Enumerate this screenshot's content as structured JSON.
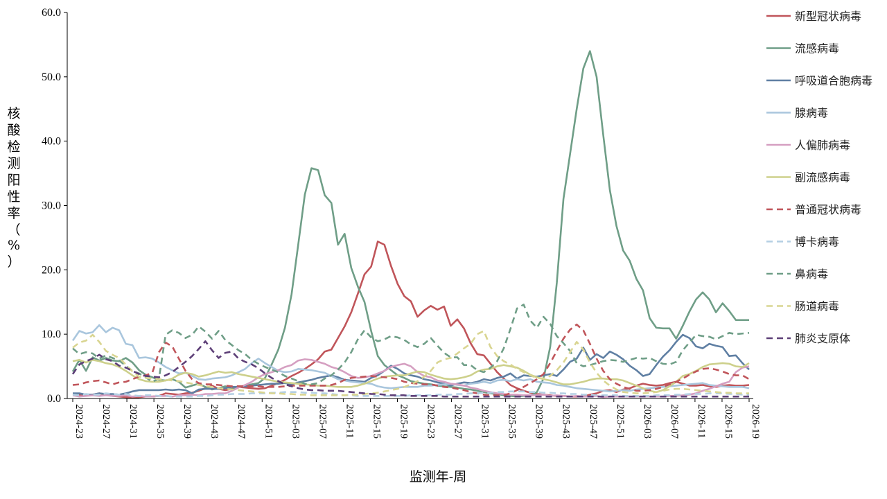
{
  "chart_data": {
    "type": "line",
    "title": "",
    "xlabel": "监测年-周",
    "ylabel": "核酸检测阳性率（%）",
    "ylim": [
      0,
      60
    ],
    "yticks": [
      "0.0",
      "10.0",
      "20.0",
      "30.0",
      "40.0",
      "50.0",
      "60.0"
    ],
    "xtick_labels": [
      "2024-23",
      "2024-27",
      "2024-31",
      "2024-35",
      "2024-39",
      "2024-43",
      "2024-47",
      "2024-51",
      "2025-03",
      "2025-07",
      "2025-11",
      "2025-15",
      "2025-19",
      "2025-23",
      "2025-27",
      "2025-31",
      "2025-35",
      "2025-39",
      "2025-43",
      "2025-47",
      "2025-51",
      "2026-03",
      "2026-07",
      "2026-11",
      "2026-15",
      "2026-19"
    ],
    "legend_position": "right",
    "grid": false,
    "series": [
      {
        "name": "新型冠状病毒",
        "color": "#c0555a",
        "dash": "solid",
        "values": [
          0.7,
          0.6,
          0.5,
          0.6,
          0.8,
          0.6,
          0.4,
          0.3,
          0.2,
          0.2,
          0.2,
          0.3,
          0.3,
          0.4,
          0.8,
          0.7,
          0.6,
          0.8,
          0.9,
          1.2,
          1.6,
          2.0,
          1.5,
          1.3,
          1.5,
          1.8,
          1.7,
          1.6,
          1.5,
          1.6,
          2.0,
          2.4,
          2.9,
          3.5,
          4.0,
          4.6,
          5.3,
          6.1,
          7.3,
          7.6,
          9.4,
          11.2,
          13.4,
          16.3,
          19.3,
          20.5,
          24.4,
          23.9,
          20.6,
          17.8,
          15.9,
          15.1,
          12.7,
          13.7,
          14.4,
          13.8,
          14.3,
          11.3,
          12.3,
          10.9,
          8.6,
          6.9,
          6.7,
          5.4,
          4.1,
          3.1,
          2.1,
          1.6,
          1.2,
          0.9,
          0.7,
          0.6,
          0.5,
          0.4,
          0.4,
          0.3,
          0.3,
          0.3,
          0.6,
          0.8,
          1.2,
          1.3,
          1.0,
          1.4,
          1.6,
          2.0,
          2.3,
          2.1,
          2.0,
          2.1,
          2.4,
          2.6,
          2.3,
          2.0,
          2.0,
          2.1,
          1.9,
          1.8,
          2.0,
          2.1,
          2.0,
          2.0,
          2.1
        ]
      },
      {
        "name": "流感病毒",
        "color": "#6f9e87",
        "dash": "solid",
        "values": [
          4.2,
          6.0,
          4.3,
          6.4,
          5.9,
          6.3,
          5.9,
          5.8,
          6.3,
          5.6,
          4.4,
          3.7,
          3.3,
          2.9,
          2.8,
          3.0,
          2.6,
          1.7,
          2.0,
          2.3,
          1.8,
          1.4,
          1.6,
          1.9,
          1.4,
          1.8,
          2.0,
          2.2,
          2.4,
          3.2,
          5.3,
          7.6,
          11.0,
          16.2,
          23.9,
          31.7,
          35.8,
          35.5,
          31.6,
          30.4,
          23.9,
          25.6,
          20.3,
          17.4,
          15.0,
          10.5,
          6.6,
          5.2,
          4.4,
          3.6,
          3.2,
          2.7,
          2.5,
          2.3,
          2.2,
          2.0,
          1.9,
          1.8,
          1.7,
          1.5,
          1.4,
          1.2,
          1.0,
          0.8,
          0.7,
          0.5,
          0.4,
          0.3,
          0.4,
          0.4,
          1.0,
          3.1,
          8.0,
          18.0,
          31.0,
          38.0,
          45.0,
          51.3,
          54.0,
          50.0,
          41.0,
          32.4,
          26.8,
          23.0,
          21.4,
          18.6,
          16.8,
          12.5,
          11.0,
          10.9,
          10.9,
          9.3,
          11.3,
          13.5,
          15.4,
          16.5,
          15.4,
          13.4,
          14.8,
          13.6,
          12.2,
          12.2,
          12.2
        ]
      },
      {
        "name": "呼吸道合胞病毒",
        "color": "#5f7fa3",
        "dash": "solid",
        "values": [
          0.8,
          0.8,
          0.6,
          0.6,
          0.8,
          0.7,
          0.7,
          0.6,
          0.8,
          1.1,
          1.3,
          1.3,
          1.3,
          1.3,
          1.4,
          1.3,
          1.4,
          1.3,
          0.8,
          1.4,
          1.5,
          1.5,
          1.5,
          1.6,
          1.8,
          1.8,
          1.9,
          2.0,
          2.1,
          2.2,
          2.3,
          2.3,
          2.4,
          2.2,
          2.5,
          2.7,
          2.9,
          3.2,
          3.4,
          3.6,
          3.3,
          2.9,
          2.8,
          2.7,
          2.6,
          3.2,
          3.6,
          4.3,
          5.1,
          4.6,
          3.9,
          3.6,
          3.4,
          3.0,
          2.8,
          2.5,
          2.3,
          2.0,
          2.3,
          2.5,
          2.4,
          2.6,
          3.0,
          2.8,
          3.2,
          3.4,
          3.9,
          3.1,
          3.6,
          3.5,
          3.4,
          3.6,
          3.8,
          3.5,
          4.5,
          5.7,
          6.2,
          7.9,
          6.0,
          6.9,
          6.3,
          7.3,
          6.8,
          6.1,
          5.1,
          4.4,
          3.5,
          3.8,
          5.2,
          6.5,
          7.5,
          8.8,
          9.9,
          9.4,
          8.1,
          7.8,
          8.5,
          8.2,
          8.0,
          6.6,
          6.7,
          5.5,
          4.5
        ]
      },
      {
        "name": "腺病毒",
        "color": "#a9c6dd",
        "dash": "solid",
        "values": [
          9.0,
          10.5,
          10.1,
          10.3,
          11.4,
          10.3,
          11.0,
          10.6,
          8.5,
          8.3,
          6.3,
          6.4,
          6.2,
          5.6,
          4.9,
          4.4,
          3.9,
          4.0,
          3.5,
          3.0,
          2.9,
          3.1,
          3.2,
          3.3,
          3.6,
          4.1,
          4.6,
          5.5,
          6.2,
          5.5,
          4.9,
          4.3,
          4.1,
          4.2,
          4.6,
          4.5,
          4.4,
          4.2,
          4.0,
          3.5,
          3.0,
          2.8,
          2.6,
          2.5,
          2.4,
          2.3,
          1.9,
          1.7,
          1.6,
          1.7,
          1.8,
          1.8,
          1.8,
          2.0,
          2.0,
          2.1,
          2.2,
          2.3,
          2.1,
          2.0,
          2.3,
          2.4,
          2.6,
          2.4,
          2.8,
          2.9,
          2.7,
          3.0,
          2.8,
          3.0,
          2.6,
          2.5,
          2.4,
          2.1,
          2.0,
          1.8,
          1.6,
          1.5,
          1.4,
          1.3,
          1.2,
          1.1,
          1.2,
          1.3,
          1.2,
          1.4,
          1.5,
          1.6,
          1.7,
          1.8,
          1.9,
          2.0,
          2.1,
          2.2,
          2.3,
          2.4,
          2.1,
          2.0,
          1.9,
          1.8,
          1.8,
          1.8,
          1.6
        ]
      },
      {
        "name": "人偏肺病毒",
        "color": "#d59fc1",
        "dash": "solid",
        "values": [
          0.5,
          0.3,
          0.4,
          0.5,
          0.4,
          0.5,
          0.4,
          0.4,
          0.5,
          0.3,
          0.4,
          0.3,
          0.3,
          0.4,
          0.4,
          0.3,
          0.5,
          0.5,
          0.6,
          0.5,
          0.7,
          0.7,
          0.8,
          0.8,
          1.2,
          1.7,
          2.1,
          2.6,
          3.3,
          3.8,
          4.1,
          4.4,
          4.9,
          5.2,
          5.9,
          6.1,
          6.0,
          5.7,
          5.4,
          4.9,
          4.6,
          4.1,
          3.5,
          3.2,
          3.3,
          3.5,
          3.9,
          4.3,
          4.9,
          5.2,
          5.4,
          5.0,
          4.1,
          3.5,
          3.3,
          2.8,
          2.6,
          2.3,
          2.2,
          2.0,
          1.7,
          1.5,
          1.2,
          1.0,
          0.8,
          0.7,
          0.6,
          0.6,
          0.5,
          0.5,
          0.5,
          0.6,
          0.4,
          0.5,
          0.4,
          0.3,
          0.4,
          0.3,
          0.3,
          0.4,
          0.2,
          0.3,
          0.3,
          0.3,
          0.3,
          0.3,
          0.3,
          0.3,
          0.3,
          0.3,
          0.4,
          0.4,
          0.5,
          0.6,
          0.8,
          1.2,
          1.5,
          1.9,
          2.3,
          2.6,
          4.1,
          4.8,
          5.0
        ]
      },
      {
        "name": "副流感病毒",
        "color": "#cdd08b",
        "dash": "solid",
        "values": [
          5.8,
          6.0,
          5.6,
          6.0,
          5.8,
          5.5,
          5.3,
          4.9,
          4.3,
          3.6,
          3.0,
          2.7,
          2.6,
          2.6,
          2.8,
          3.1,
          3.7,
          4.0,
          3.8,
          3.4,
          3.6,
          3.9,
          4.2,
          4.0,
          4.1,
          3.8,
          3.6,
          3.4,
          3.2,
          3.0,
          2.8,
          2.6,
          2.5,
          2.4,
          2.3,
          2.2,
          2.1,
          2.0,
          2.0,
          1.9,
          1.8,
          1.8,
          1.8,
          2.0,
          2.3,
          2.7,
          3.1,
          3.4,
          3.5,
          3.6,
          3.6,
          3.9,
          4.2,
          4.1,
          3.7,
          3.4,
          3.1,
          3.0,
          3.1,
          3.3,
          3.6,
          4.2,
          4.5,
          4.6,
          5.0,
          5.2,
          5.0,
          4.8,
          4.3,
          3.7,
          3.3,
          3.0,
          2.8,
          2.5,
          2.2,
          2.2,
          2.4,
          2.6,
          2.9,
          3.1,
          3.1,
          3.0,
          3.0,
          2.8,
          2.4,
          2.0,
          1.6,
          1.2,
          1.0,
          1.3,
          1.9,
          2.6,
          3.5,
          3.8,
          4.3,
          4.9,
          5.3,
          5.4,
          5.5,
          5.4,
          5.0,
          4.9,
          5.5
        ]
      },
      {
        "name": "普通冠状病毒",
        "color": "#c0555a",
        "dash": "dashed",
        "values": [
          2.1,
          2.2,
          2.5,
          2.7,
          2.8,
          2.5,
          2.2,
          2.5,
          2.6,
          3.0,
          3.4,
          3.6,
          4.0,
          7.2,
          8.7,
          8.1,
          6.2,
          4.3,
          3.0,
          2.4,
          2.2,
          2.2,
          2.1,
          2.0,
          1.9,
          1.9,
          1.9,
          1.9,
          1.9,
          1.8,
          1.8,
          1.8,
          1.9,
          2.0,
          2.0,
          2.0,
          2.0,
          2.0,
          2.0,
          2.1,
          2.4,
          2.9,
          3.2,
          3.3,
          3.4,
          3.5,
          3.4,
          3.3,
          3.2,
          3.0,
          2.6,
          2.4,
          2.3,
          2.2,
          2.2,
          2.0,
          1.8,
          1.7,
          1.5,
          1.3,
          1.0,
          0.8,
          0.6,
          0.5,
          0.5,
          0.5,
          0.8,
          1.3,
          1.8,
          2.4,
          3.0,
          3.8,
          5.5,
          7.4,
          9.3,
          10.7,
          11.5,
          10.6,
          8.5,
          6.2,
          4.3,
          3.0,
          2.3,
          1.8,
          1.5,
          1.2,
          1.2,
          1.3,
          1.5,
          1.8,
          2.2,
          2.6,
          3.1,
          3.7,
          4.2,
          4.6,
          4.7,
          4.5,
          4.2,
          3.8,
          3.6,
          3.6,
          3.0
        ]
      },
      {
        "name": "博卡病毒",
        "color": "#b4cfe3",
        "dash": "dashed",
        "values": [
          0.6,
          0.5,
          0.7,
          0.6,
          0.6,
          0.8,
          0.7,
          0.6,
          0.7,
          0.5,
          0.4,
          0.5,
          0.5,
          0.4,
          0.4,
          0.3,
          0.3,
          0.3,
          0.3,
          0.4,
          0.4,
          0.5,
          0.6,
          0.6,
          0.7,
          0.7,
          0.7,
          0.8,
          0.8,
          0.8,
          0.9,
          0.9,
          1.0,
          1.0,
          1.0,
          0.9,
          0.9,
          0.8,
          0.8,
          0.7,
          0.6,
          0.5,
          0.5,
          0.4,
          0.4,
          0.4,
          0.4,
          0.4,
          0.4,
          0.4,
          0.4,
          0.5,
          0.5,
          0.5,
          0.5,
          0.6,
          0.6,
          0.6,
          0.7,
          0.7,
          0.8,
          0.8,
          0.9,
          0.9,
          1.0,
          1.0,
          1.1,
          1.1,
          1.1,
          1.0,
          1.0,
          0.9,
          0.9,
          0.8,
          0.8,
          0.7,
          0.7,
          0.6,
          0.6,
          0.5,
          0.5,
          0.5,
          0.5,
          0.4,
          0.4,
          0.4,
          0.4,
          0.4,
          0.5,
          0.5,
          0.5,
          0.6,
          0.6,
          0.7,
          0.7,
          0.7,
          0.8,
          0.8,
          0.8,
          0.7,
          0.7,
          0.6,
          0.6
        ]
      },
      {
        "name": "鼻病毒",
        "color": "#6f9e87",
        "dash": "dashed",
        "values": [
          7.8,
          6.9,
          7.2,
          7.0,
          6.2,
          6.7,
          6.3,
          5.9,
          5.1,
          4.3,
          3.9,
          3.3,
          2.6,
          3.1,
          9.9,
          10.6,
          10.2,
          9.4,
          9.9,
          11.2,
          10.4,
          9.3,
          10.5,
          9.1,
          8.3,
          7.5,
          6.9,
          6.0,
          5.4,
          4.9,
          4.5,
          4.1,
          3.5,
          3.1,
          2.7,
          2.3,
          2.2,
          2.4,
          3.1,
          3.6,
          4.5,
          5.6,
          7.2,
          9.2,
          10.6,
          9.5,
          8.9,
          9.2,
          9.7,
          9.5,
          9.1,
          8.4,
          8.0,
          8.5,
          9.4,
          8.2,
          7.1,
          6.4,
          6.4,
          5.2,
          5.2,
          4.4,
          4.1,
          4.8,
          5.8,
          7.8,
          10.8,
          14.0,
          14.6,
          12.1,
          11.0,
          12.7,
          11.6,
          9.7,
          8.6,
          7.4,
          5.5,
          5.0,
          5.2,
          5.5,
          5.8,
          6.0,
          5.9,
          5.7,
          6.0,
          6.3,
          6.2,
          6.3,
          5.8,
          5.4,
          5.3,
          5.7,
          7.5,
          8.7,
          9.9,
          9.7,
          9.6,
          9.2,
          9.7,
          10.2,
          10.0,
          10.1,
          10.2
        ]
      },
      {
        "name": "肠道病毒",
        "color": "#d9d591",
        "dash": "dashed",
        "values": [
          7.9,
          8.7,
          9.0,
          9.9,
          8.8,
          7.4,
          6.8,
          6.3,
          5.3,
          4.2,
          3.4,
          3.2,
          3.1,
          3.0,
          2.9,
          2.8,
          2.7,
          2.5,
          2.3,
          2.1,
          1.9,
          1.8,
          1.6,
          1.5,
          1.4,
          1.3,
          1.2,
          1.1,
          1.0,
          0.9,
          0.8,
          0.8,
          0.7,
          0.7,
          0.6,
          0.6,
          0.5,
          0.5,
          0.5,
          0.5,
          0.5,
          0.5,
          0.6,
          0.6,
          0.7,
          0.8,
          0.9,
          1.1,
          1.3,
          1.5,
          1.8,
          2.2,
          2.7,
          3.4,
          4.3,
          5.6,
          6.1,
          6.3,
          7.0,
          7.8,
          8.5,
          10.0,
          10.5,
          8.0,
          6.6,
          5.8,
          5.3,
          4.6,
          4.1,
          3.6,
          3.2,
          3.1,
          3.5,
          4.4,
          5.6,
          7.2,
          8.8,
          7.6,
          5.6,
          4.0,
          2.8,
          2.0,
          1.4,
          1.0,
          0.9,
          0.8,
          0.8,
          0.9,
          1.0,
          1.2,
          1.4,
          1.5,
          1.5,
          1.4,
          1.3,
          1.2,
          1.1,
          1.0,
          0.9,
          0.9,
          0.8,
          0.8,
          0.8
        ]
      },
      {
        "name": "肺炎支原体",
        "color": "#5d3f77",
        "dash": "dashed",
        "values": [
          3.8,
          5.3,
          5.8,
          6.2,
          6.8,
          6.1,
          5.8,
          5.1,
          4.8,
          4.3,
          3.8,
          3.5,
          3.4,
          3.3,
          3.6,
          4.1,
          4.9,
          5.7,
          6.6,
          7.7,
          8.9,
          7.5,
          6.3,
          7.1,
          7.3,
          6.2,
          5.7,
          5.3,
          4.7,
          3.9,
          3.2,
          2.7,
          2.2,
          1.9,
          1.6,
          1.4,
          1.3,
          1.3,
          1.2,
          1.2,
          1.2,
          1.1,
          1.0,
          0.9,
          0.8,
          0.7,
          0.7,
          0.6,
          0.5,
          0.5,
          0.5,
          0.4,
          0.4,
          0.4,
          0.4,
          0.4,
          0.3,
          0.3,
          0.3,
          0.3,
          0.3,
          0.3,
          0.3,
          0.3,
          0.3,
          0.3,
          0.3,
          0.3,
          0.3,
          0.3,
          0.3,
          0.3,
          0.3,
          0.3,
          0.3,
          0.3,
          0.3,
          0.3,
          0.3,
          0.3,
          0.3,
          0.3,
          0.3,
          0.3,
          0.3,
          0.3,
          0.3,
          0.3,
          0.3,
          0.3,
          0.3,
          0.3,
          0.3,
          0.3,
          0.3,
          0.3,
          0.3,
          0.3,
          0.3,
          0.3,
          0.3,
          0.3,
          0.3
        ]
      }
    ]
  }
}
